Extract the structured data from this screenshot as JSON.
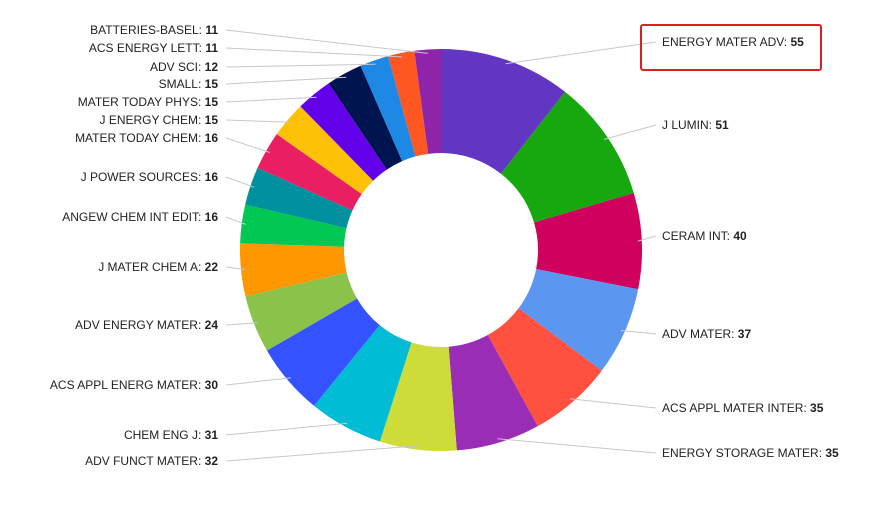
{
  "chart_data": {
    "type": "pie",
    "donut": true,
    "categories": [
      "ENERGY MATER ADV",
      "J LUMIN",
      "CERAM INT",
      "ADV MATER",
      "ACS APPL MATER INTER",
      "ENERGY STORAGE MATER",
      "ADV FUNCT MATER",
      "CHEM ENG J",
      "ACS APPL ENERG MATER",
      "ADV ENERGY MATER",
      "J MATER CHEM A",
      "ANGEW CHEM INT EDIT",
      "J POWER SOURCES",
      "MATER TODAY CHEM",
      "J ENERGY CHEM",
      "MATER TODAY PHYS",
      "SMALL",
      "ADV SCI",
      "ACS ENERGY LETT",
      "BATTERIES-BASEL"
    ],
    "values": [
      55,
      51,
      40,
      37,
      35,
      35,
      32,
      31,
      30,
      24,
      22,
      16,
      16,
      16,
      15,
      15,
      15,
      12,
      11,
      11
    ],
    "colors": [
      "#6236c2",
      "#16a80e",
      "#d0005e",
      "#5b96f0",
      "#ff5040",
      "#9a2db5",
      "#cddc39",
      "#00bcd4",
      "#3452ff",
      "#8bc34a",
      "#ff9800",
      "#00c853",
      "#00909e",
      "#e91e63",
      "#ffc107",
      "#6200ea",
      "#001550",
      "#1e88e5",
      "#ff5722",
      "#8e24aa"
    ],
    "highlighted": "ENERGY MATER ADV",
    "highlight_color": "#e02020",
    "label_separator": ": ",
    "legend": "none"
  }
}
